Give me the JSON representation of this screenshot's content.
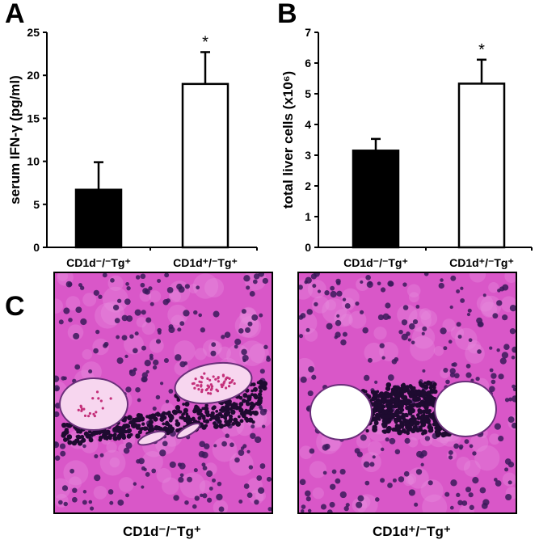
{
  "panels": {
    "a_letter": "A",
    "b_letter": "B",
    "c_letter": "C"
  },
  "chart_data": [
    {
      "panel": "A",
      "type": "bar",
      "ylabel": "serum IFN-γ (pg/ml)",
      "ylim": [
        0,
        25
      ],
      "yticks": [
        0,
        5,
        10,
        15,
        20,
        25
      ],
      "categories": [
        "CD1d⁻/⁻Tg⁺",
        "CD1d⁺/⁻Tg⁺"
      ],
      "values": [
        6.7,
        19.0
      ],
      "errors": [
        3.2,
        3.7
      ],
      "fills": [
        "#000000",
        "#ffffff"
      ],
      "annotations": [
        "",
        "*"
      ],
      "grid": false
    },
    {
      "panel": "B",
      "type": "bar",
      "ylabel": "total liver cells (x10⁶)",
      "ylim": [
        0,
        7
      ],
      "yticks": [
        0,
        1,
        2,
        3,
        4,
        5,
        6,
        7
      ],
      "categories": [
        "CD1d⁻/⁻Tg⁺",
        "CD1d⁺/⁻Tg⁺"
      ],
      "values": [
        3.15,
        5.33
      ],
      "errors": [
        0.38,
        0.78
      ],
      "fills": [
        "#000000",
        "#ffffff"
      ],
      "annotations": [
        "",
        "*"
      ],
      "grid": false
    }
  ],
  "micrographs": [
    {
      "caption": "CD1d⁻/⁻Tg⁺",
      "tissue_color": "#d957c8"
    },
    {
      "caption": "CD1d⁺/⁻Tg⁺",
      "tissue_color": "#d957c8"
    }
  ]
}
